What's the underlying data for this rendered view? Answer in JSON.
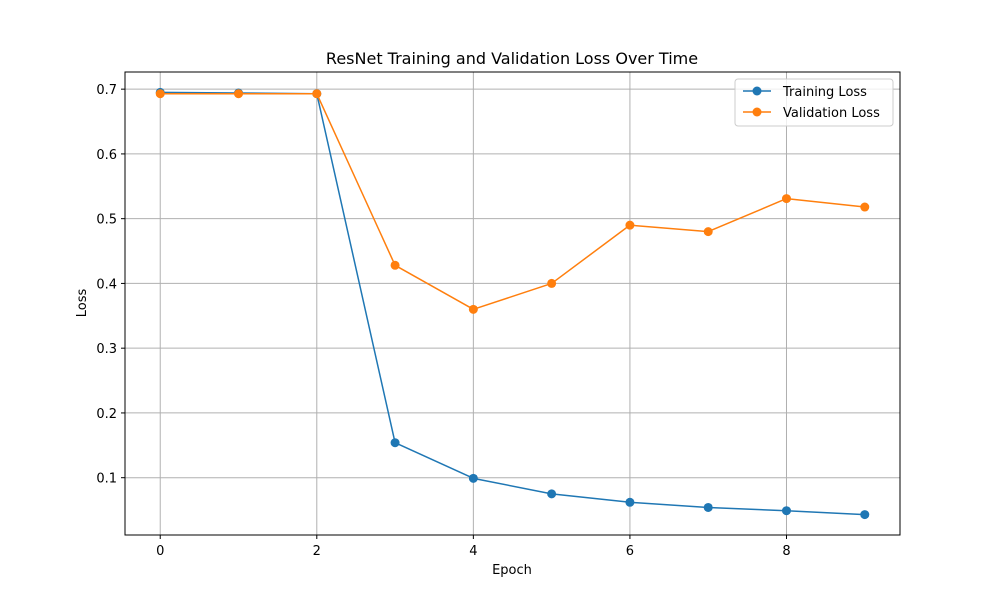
{
  "chart_data": {
    "type": "line",
    "title": "ResNet Training and Validation Loss Over Time",
    "xlabel": "Epoch",
    "ylabel": "Loss",
    "xlim": [
      -0.45,
      9.45
    ],
    "ylim": [
      0.0115,
      0.7265
    ],
    "x_ticks": [
      0,
      2,
      4,
      6,
      8
    ],
    "y_ticks": [
      0.1,
      0.2,
      0.3,
      0.4,
      0.5,
      0.6,
      0.7
    ],
    "grid": true,
    "legend_position": "top-right",
    "x": [
      0,
      1,
      2,
      3,
      4,
      5,
      6,
      7,
      8,
      9
    ],
    "series": [
      {
        "name": "Training Loss",
        "color": "#1f77b4",
        "values": [
          0.695,
          0.694,
          0.693,
          0.154,
          0.099,
          0.075,
          0.062,
          0.054,
          0.049,
          0.043
        ]
      },
      {
        "name": "Validation Loss",
        "color": "#ff7f0e",
        "values": [
          0.693,
          0.693,
          0.693,
          0.428,
          0.36,
          0.4,
          0.49,
          0.48,
          0.531,
          0.518
        ]
      }
    ]
  }
}
